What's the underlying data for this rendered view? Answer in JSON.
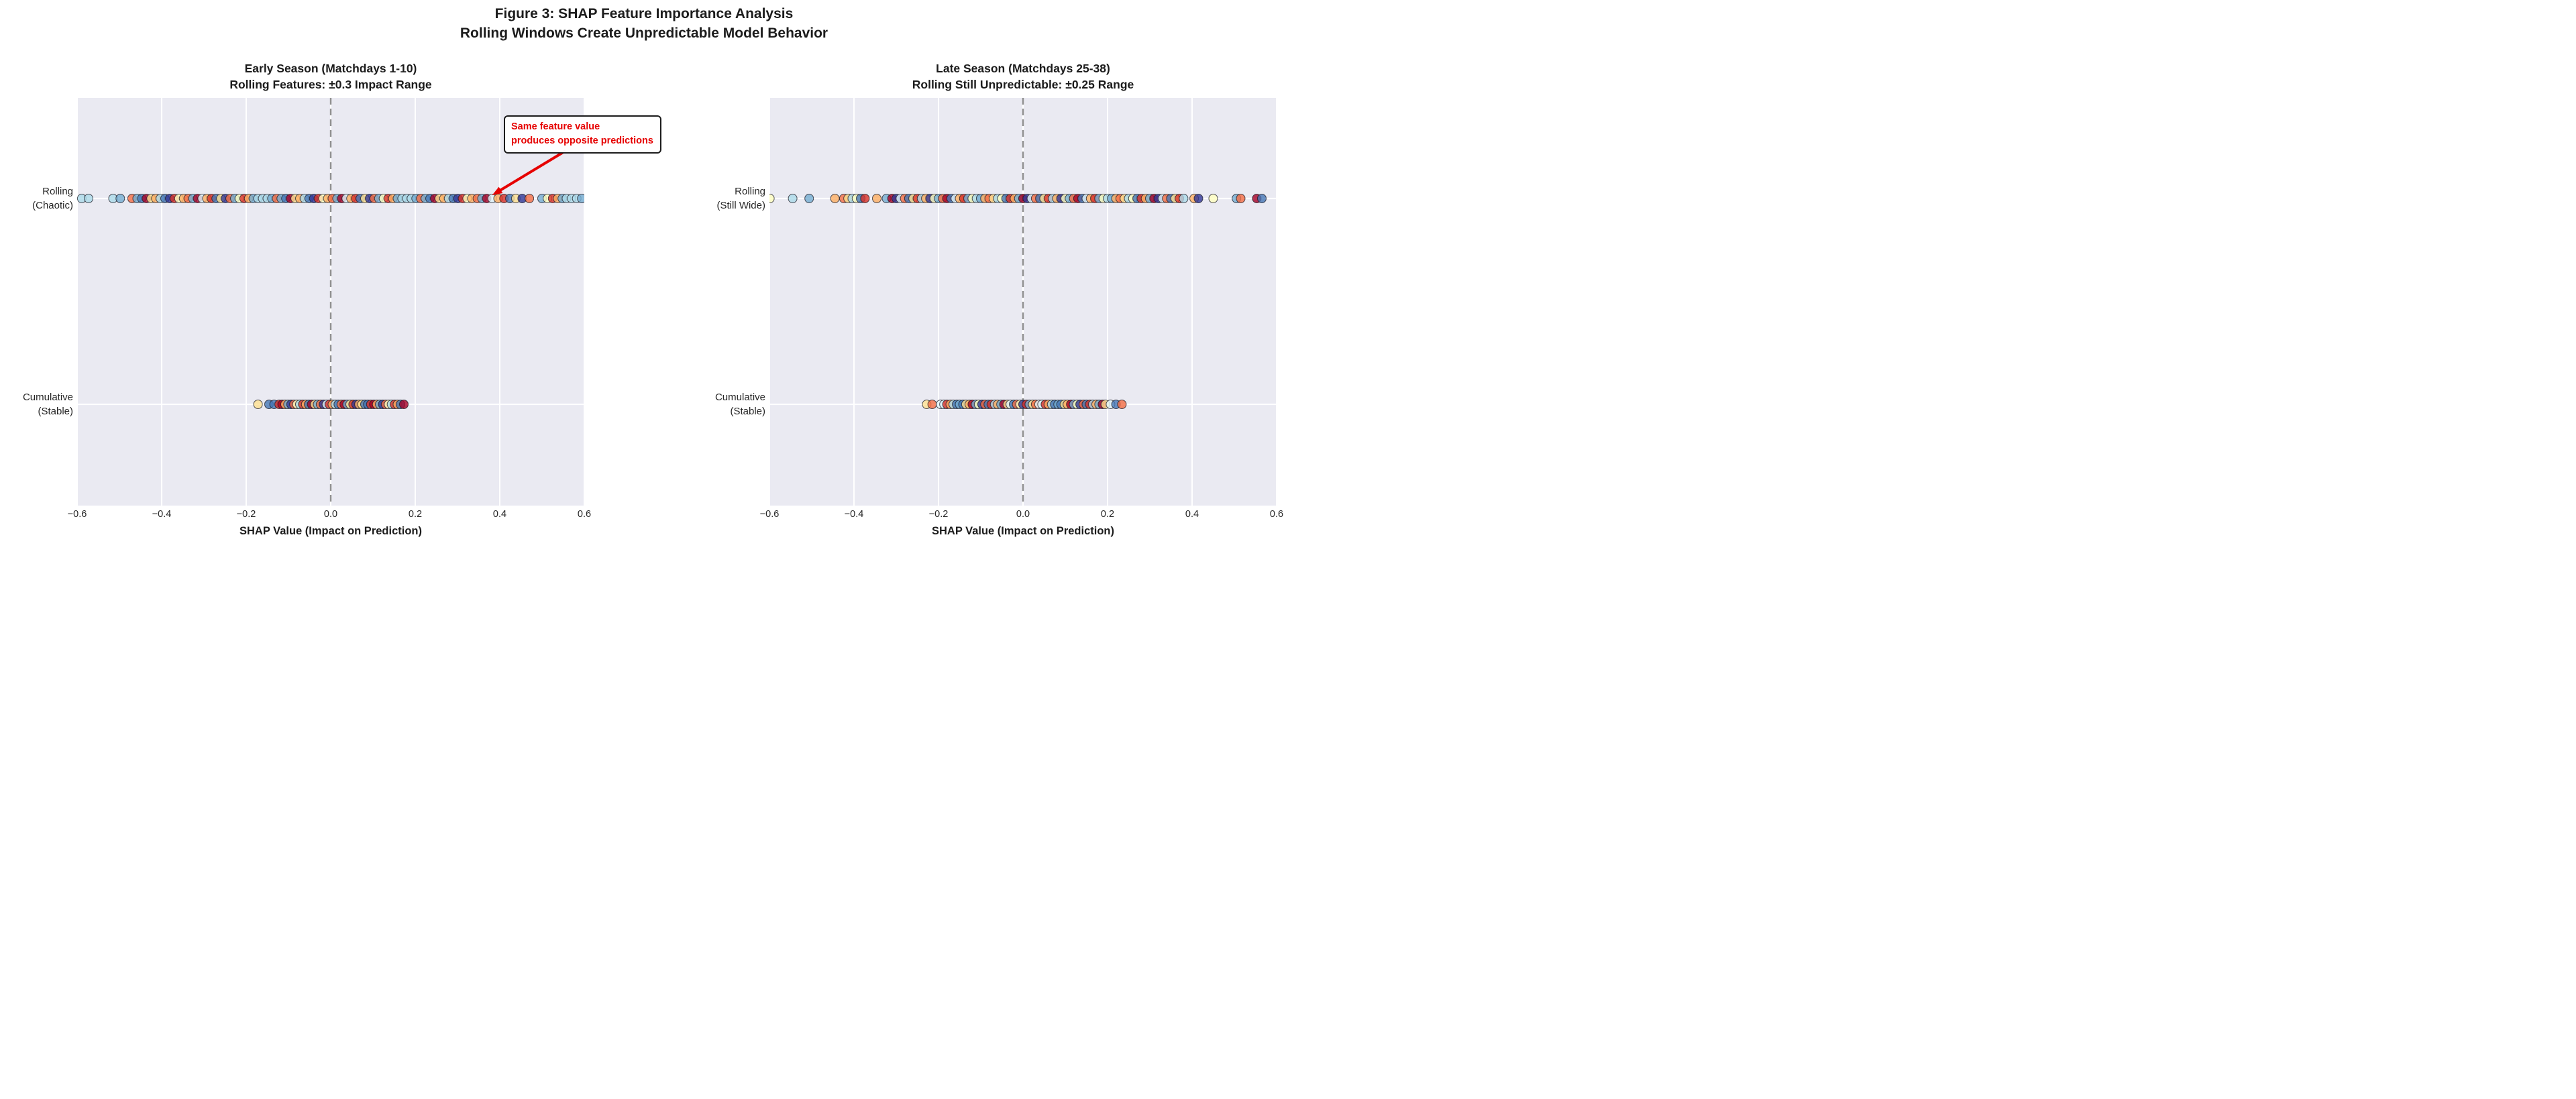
{
  "figure_title": {
    "line1": "Figure 3: SHAP Feature Importance Analysis",
    "line2": "Rolling Windows Create Unpredictable Model Behavior"
  },
  "colors": {
    "plot_bg": "#eaeaf2",
    "grid": "#ffffff",
    "zero_line": "#909090",
    "text": "#262626",
    "dot_edge": "rgba(25,25,35,0.75)",
    "annotation_red": "#e60000"
  },
  "palette": [
    "#a50026",
    "#d73027",
    "#f46d43",
    "#fdae61",
    "#fee090",
    "#ffffbf",
    "#e0f3f8",
    "#abd9e9",
    "#74add1",
    "#4575b4",
    "#313695"
  ],
  "annotation": {
    "lines": [
      "Same feature value",
      "produces opposite predictions"
    ],
    "text_color": "#e60000",
    "arrow_color": "#e60000",
    "panel": 0,
    "series": 0,
    "target_x": 0.369
  },
  "chart_data": [
    {
      "type": "scatter",
      "title_lines": [
        "Early Season (Matchdays 1-10)",
        "Rolling Features: ±0.3 Impact Range"
      ],
      "xlabel": "SHAP Value (Impact on Prediction)",
      "xlim": [
        -0.6,
        0.6
      ],
      "x_ticks": [
        -0.6,
        -0.4,
        -0.2,
        0.0,
        0.2,
        0.4,
        0.6
      ],
      "x_tick_labels": [
        "−0.6",
        "−0.4",
        "−0.2",
        "0.0",
        "0.2",
        "0.4",
        "0.6"
      ],
      "grid": true,
      "zero_line_x": 0.0,
      "legend": "none",
      "series": [
        {
          "name": "Rolling (Chaotic)",
          "row_label_lines": [
            "Rolling",
            "(Chaotic)"
          ],
          "x": [
            -0.589,
            -0.573,
            -0.515,
            -0.498,
            -0.47,
            -0.458,
            -0.447,
            -0.436,
            -0.425,
            -0.414,
            -0.403,
            -0.392,
            -0.381,
            -0.37,
            -0.359,
            -0.348,
            -0.337,
            -0.326,
            -0.315,
            -0.304,
            -0.293,
            -0.282,
            -0.271,
            -0.26,
            -0.249,
            -0.238,
            -0.227,
            -0.216,
            -0.205,
            -0.194,
            -0.183,
            -0.172,
            -0.161,
            -0.15,
            -0.139,
            -0.128,
            -0.117,
            -0.106,
            -0.095,
            -0.084,
            -0.073,
            -0.062,
            -0.051,
            -0.04,
            -0.029,
            -0.018,
            -0.007,
            0.004,
            0.015,
            0.026,
            0.037,
            0.048,
            0.059,
            0.07,
            0.081,
            0.092,
            0.103,
            0.114,
            0.125,
            0.136,
            0.147,
            0.158,
            0.169,
            0.18,
            0.191,
            0.202,
            0.213,
            0.224,
            0.235,
            0.246,
            0.257,
            0.268,
            0.279,
            0.29,
            0.301,
            0.312,
            0.323,
            0.334,
            0.347,
            0.358,
            0.369,
            0.382,
            0.396,
            0.41,
            0.424,
            0.438,
            0.453,
            0.47,
            0.5,
            0.513,
            0.525,
            0.537,
            0.548,
            0.558,
            0.57,
            0.582,
            0.594
          ],
          "color_pattern": [
            7,
            7,
            7,
            8,
            2,
            8,
            9,
            0,
            4,
            3,
            7,
            9,
            10,
            1,
            5,
            3,
            2,
            8,
            0,
            6,
            3,
            1,
            9,
            4,
            10,
            2,
            8,
            5,
            1,
            3,
            8
          ]
        },
        {
          "name": "Cumulative (Stable)",
          "row_label_lines": [
            "Cumulative",
            "(Stable)"
          ],
          "x": [
            -0.172,
            -0.146,
            -0.134,
            -0.122,
            -0.115,
            -0.108,
            -0.101,
            -0.094,
            -0.087,
            -0.08,
            -0.073,
            -0.066,
            -0.059,
            -0.052,
            -0.045,
            -0.038,
            -0.031,
            -0.024,
            -0.017,
            -0.01,
            -0.003,
            0.004,
            0.011,
            0.018,
            0.025,
            0.032,
            0.039,
            0.046,
            0.053,
            0.06,
            0.067,
            0.074,
            0.081,
            0.088,
            0.095,
            0.102,
            0.109,
            0.116,
            0.123,
            0.13,
            0.137,
            0.144,
            0.151,
            0.158,
            0.165,
            0.173
          ],
          "color_pattern": [
            4,
            9,
            9,
            1,
            0,
            3,
            8,
            10,
            2,
            5,
            7,
            1,
            3,
            9,
            0,
            4,
            8,
            2,
            10,
            6,
            1,
            3,
            7,
            9,
            2,
            0,
            8,
            4,
            1,
            10,
            3
          ]
        }
      ]
    },
    {
      "type": "scatter",
      "title_lines": [
        "Late Season (Matchdays 25-38)",
        "Rolling Still Unpredictable: ±0.25 Range"
      ],
      "xlabel": "SHAP Value (Impact on Prediction)",
      "xlim": [
        -0.6,
        0.6
      ],
      "x_ticks": [
        -0.6,
        -0.4,
        -0.2,
        0.0,
        0.2,
        0.4,
        0.6
      ],
      "x_tick_labels": [
        "−0.6",
        "−0.4",
        "−0.2",
        "0.0",
        "0.2",
        "0.4",
        "0.6"
      ],
      "grid": true,
      "zero_line_x": 0.0,
      "legend": "none",
      "series": [
        {
          "name": "Rolling (Still Wide)",
          "row_label_lines": [
            "Rolling",
            "(Still Wide)"
          ],
          "x": [
            -0.599,
            -0.545,
            -0.506,
            -0.445,
            -0.424,
            -0.414,
            -0.404,
            -0.394,
            -0.384,
            -0.374,
            -0.346,
            -0.323,
            -0.31,
            -0.3,
            -0.29,
            -0.28,
            -0.27,
            -0.26,
            -0.25,
            -0.24,
            -0.23,
            -0.22,
            -0.21,
            -0.2,
            -0.19,
            -0.18,
            -0.17,
            -0.16,
            -0.15,
            -0.14,
            -0.13,
            -0.12,
            -0.11,
            -0.1,
            -0.09,
            -0.08,
            -0.07,
            -0.06,
            -0.05,
            -0.04,
            -0.03,
            -0.02,
            -0.01,
            0.0,
            0.01,
            0.02,
            0.03,
            0.04,
            0.05,
            0.06,
            0.07,
            0.08,
            0.09,
            0.1,
            0.11,
            0.12,
            0.13,
            0.14,
            0.15,
            0.16,
            0.17,
            0.18,
            0.19,
            0.2,
            0.21,
            0.22,
            0.23,
            0.24,
            0.25,
            0.26,
            0.27,
            0.28,
            0.29,
            0.3,
            0.31,
            0.32,
            0.33,
            0.34,
            0.35,
            0.36,
            0.37,
            0.38,
            0.405,
            0.415,
            0.45,
            0.505,
            0.515,
            0.553,
            0.565
          ],
          "color_pattern": [
            5,
            7,
            8,
            3,
            2,
            4,
            7,
            5,
            9,
            1,
            3,
            8,
            0,
            10,
            6,
            2,
            9,
            4,
            1,
            7,
            3,
            10,
            5,
            8,
            2,
            0,
            9,
            6,
            3,
            1,
            8
          ]
        },
        {
          "name": "Cumulative (Stable)",
          "row_label_lines": [
            "Cumulative",
            "(Stable)"
          ],
          "x": [
            -0.228,
            -0.215,
            -0.195,
            -0.187,
            -0.18,
            -0.172,
            -0.165,
            -0.157,
            -0.15,
            -0.142,
            -0.135,
            -0.127,
            -0.12,
            -0.112,
            -0.105,
            -0.097,
            -0.09,
            -0.082,
            -0.075,
            -0.067,
            -0.06,
            -0.052,
            -0.045,
            -0.037,
            -0.03,
            -0.022,
            -0.015,
            -0.007,
            0.0,
            0.008,
            0.015,
            0.023,
            0.03,
            0.038,
            0.045,
            0.053,
            0.06,
            0.068,
            0.075,
            0.083,
            0.09,
            0.098,
            0.105,
            0.113,
            0.12,
            0.128,
            0.135,
            0.143,
            0.15,
            0.158,
            0.165,
            0.173,
            0.18,
            0.188,
            0.195,
            0.207,
            0.22,
            0.234
          ],
          "color_pattern": [
            4,
            2,
            6,
            6,
            1,
            3,
            7,
            9,
            8,
            9,
            4,
            3,
            0,
            8,
            5,
            10,
            2,
            9,
            1,
            7,
            3,
            8,
            0,
            4,
            6,
            9,
            2,
            5,
            10,
            1,
            8
          ]
        }
      ]
    }
  ]
}
